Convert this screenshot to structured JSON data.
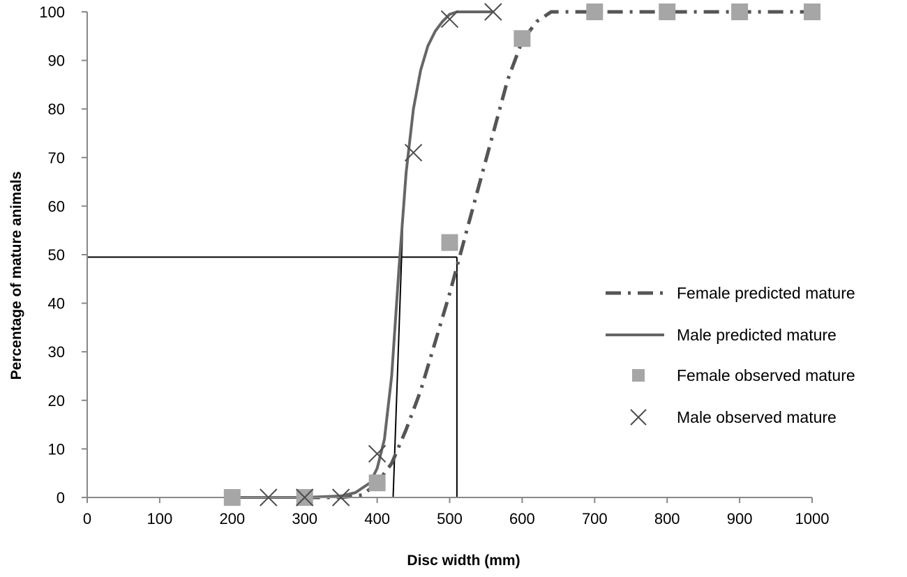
{
  "chart_data": {
    "type": "line",
    "xlabel": "Disc width (mm)",
    "ylabel": "Percentage of mature animals",
    "xlim": [
      0,
      1000
    ],
    "ylim": [
      0,
      100
    ],
    "xticks": [
      0,
      100,
      200,
      300,
      400,
      500,
      600,
      700,
      800,
      900,
      1000
    ],
    "yticks": [
      0,
      10,
      20,
      30,
      40,
      50,
      60,
      70,
      80,
      90,
      100
    ],
    "grid": false,
    "legend_position": "right",
    "series": [
      {
        "name": "Female predicted mature",
        "kind": "line",
        "style": "dash-dot",
        "color": "#555555",
        "x": [
          300,
          350,
          380,
          400,
          420,
          440,
          460,
          480,
          500,
          520,
          540,
          560,
          580,
          600,
          620,
          640,
          700,
          800,
          900,
          1000
        ],
        "y": [
          0,
          0,
          0.5,
          3,
          7,
          14,
          22,
          32,
          42,
          53,
          64,
          75,
          86,
          94,
          98,
          100,
          100,
          100,
          100,
          100
        ]
      },
      {
        "name": "Male predicted mature",
        "kind": "line",
        "style": "solid",
        "color": "#666666",
        "x": [
          200,
          300,
          350,
          370,
          390,
          400,
          410,
          420,
          430,
          440,
          450,
          460,
          470,
          480,
          490,
          500,
          510,
          560
        ],
        "y": [
          0,
          0,
          0.3,
          1,
          3,
          6,
          12,
          25,
          47,
          67,
          80,
          88,
          93,
          96,
          98,
          99.5,
          100,
          100
        ]
      },
      {
        "name": "Female observed mature",
        "kind": "scatter",
        "marker": "square",
        "color": "#a6a6a6",
        "x": [
          200,
          300,
          400,
          500,
          600,
          700,
          800,
          900,
          1000
        ],
        "y": [
          0,
          0,
          3,
          52.5,
          94.5,
          100,
          100,
          100,
          100
        ]
      },
      {
        "name": "Male observed mature",
        "kind": "scatter",
        "marker": "x",
        "color": "#4d4d4d",
        "x": [
          250,
          300,
          350,
          400,
          450,
          500,
          560
        ],
        "y": [
          0,
          0,
          0,
          9,
          71,
          98.5,
          100
        ]
      }
    ],
    "reference_lines": [
      {
        "color": "#000000",
        "points": [
          [
            0,
            49.5
          ],
          [
            510,
            49.5
          ]
        ]
      },
      {
        "color": "#000000",
        "points": [
          [
            510,
            49.5
          ],
          [
            510,
            0
          ]
        ]
      },
      {
        "color": "#000000",
        "points": [
          [
            422,
            0
          ],
          [
            435,
            55
          ]
        ]
      }
    ]
  }
}
